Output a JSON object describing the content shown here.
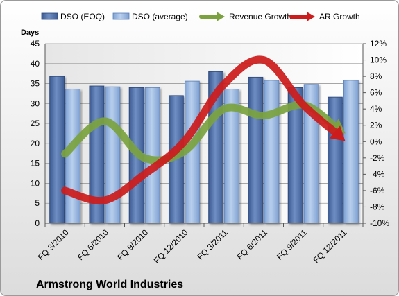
{
  "chart_data": {
    "type": "bar",
    "title": "Armstrong World Industries",
    "categories": [
      "FQ 3/2010",
      "FQ 6/2010",
      "FQ 9/2010",
      "FQ 12/2010",
      "FQ 3/2011",
      "FQ 6/2011",
      "FQ 9/2011",
      "FQ 12/2011"
    ],
    "ylabel": "Days",
    "ylim": [
      0,
      45
    ],
    "y_ticks": [
      "0",
      "5",
      "10",
      "15",
      "20",
      "25",
      "30",
      "35",
      "40",
      "45"
    ],
    "y2lim": [
      -10,
      12
    ],
    "y2_ticks": [
      "-10%",
      "-8%",
      "-6%",
      "-4%",
      "-2%",
      "0%",
      "2%",
      "4%",
      "6%",
      "8%",
      "10%",
      "12%"
    ],
    "legend_position": "top",
    "series": [
      {
        "name": "DSO (EOQ)",
        "kind": "bar",
        "axis": "left",
        "color": "#4f6fa8",
        "values": [
          36.8,
          34.4,
          34.0,
          32.0,
          38.0,
          36.6,
          34.0,
          31.6
        ]
      },
      {
        "name": "DSO (average)",
        "kind": "bar",
        "axis": "left",
        "color": "#8fb0dc",
        "values": [
          33.6,
          34.2,
          34.0,
          35.6,
          33.6,
          35.8,
          34.8,
          35.8
        ]
      },
      {
        "name": "Revenue Growth",
        "kind": "arrow-line",
        "axis": "right",
        "color": "#7ba23f",
        "values": [
          -1.5,
          2.5,
          -2.0,
          -1.2,
          4.0,
          3.2,
          4.5,
          1.2
        ]
      },
      {
        "name": "AR Growth",
        "kind": "arrow-line",
        "axis": "right",
        "color": "#cc1c1c",
        "values": [
          -6.0,
          -7.2,
          -4.0,
          0.0,
          7.0,
          10.0,
          4.5,
          0.3
        ]
      }
    ]
  }
}
